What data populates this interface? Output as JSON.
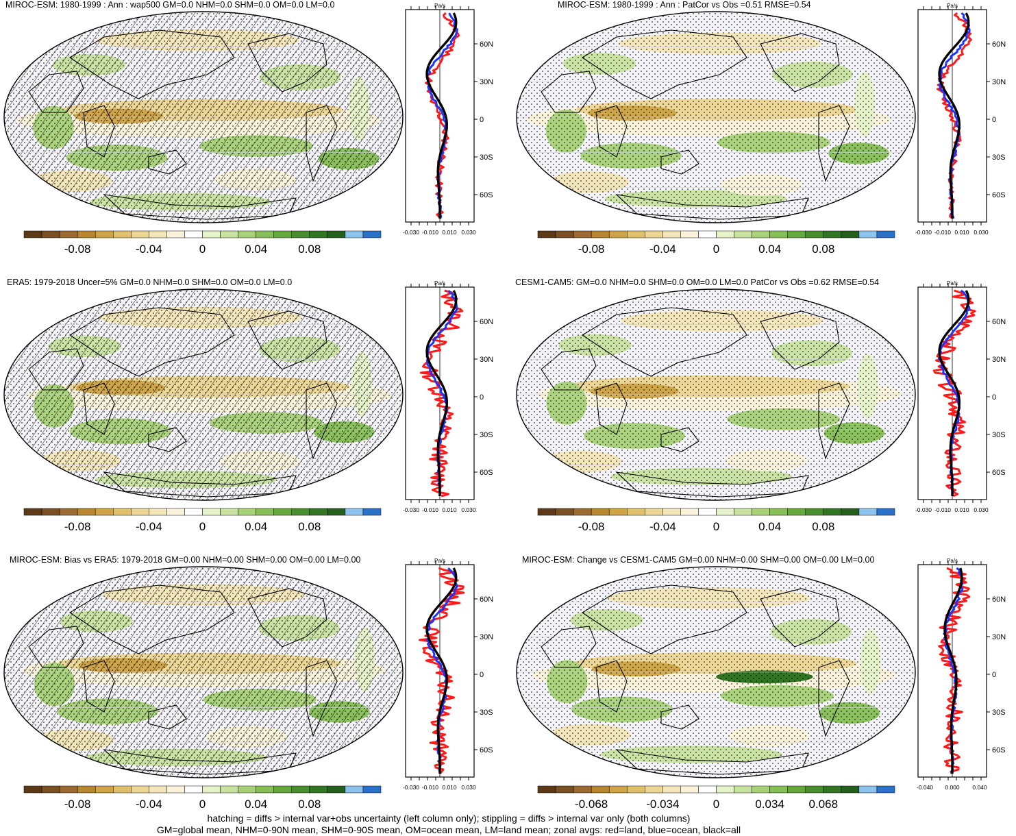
{
  "figure": {
    "colors": {
      "land_line": "#ff1a1a",
      "ocean_line": "#1a33ff",
      "all_line": "#000000",
      "map_bg": "#f4f4f8",
      "coast": "#000000"
    },
    "footer_line1": "hatching = diffs > internal var+obs uncertainty (left column only); stippling = diffs > internal var only (both columns)",
    "footer_line2": "GM=global mean, NHM=0-90N mean, SHM=0-90S mean, OM=ocean mean, LM=land mean; zonal avgs: red=land, blue=ocean, black=all"
  },
  "palette": [
    "#5c3a17",
    "#7a4f22",
    "#9c6a30",
    "#b8862e",
    "#cfa346",
    "#e0c06a",
    "#ecd694",
    "#f4e6b8",
    "#faf2da",
    "#ffffff",
    "#e6f2c8",
    "#c8e3a0",
    "#a8d277",
    "#86bf55",
    "#65a83c",
    "#4a8f2e",
    "#327523",
    "#245f1e",
    "#8cc3ef",
    "#2a72c9"
  ],
  "panels": [
    {
      "title": "MIROC-ESM: 1980-1999 : Ann : wap500 GM=0.0 NHM=0.0 SHM=0.0 OM=0.0 LM=0.0",
      "hatching": true,
      "zonal_unit": "Pa/s",
      "zonal_lat_ticks": [
        "60N",
        "30N",
        "0",
        "30S",
        "60S"
      ],
      "zonal_x_ticks": [
        "-0.030",
        "-0.010",
        "0.010",
        "0.030"
      ],
      "colorbar_ticks": [
        "-0.08",
        "-0.04",
        "0",
        "0.04",
        "0.08"
      ]
    },
    {
      "title": "MIROC-ESM: 1980-1999 : Ann : PatCor vs Obs =0.51 RMSE=0.54",
      "hatching": false,
      "zonal_unit": "Pa/s",
      "zonal_lat_ticks": [
        "60N",
        "30N",
        "0",
        "30S",
        "60S"
      ],
      "zonal_x_ticks": [
        "-0.030",
        "-0.010",
        "0.010",
        "0.030"
      ],
      "colorbar_ticks": [
        "-0.08",
        "-0.04",
        "0",
        "0.04",
        "0.08"
      ]
    },
    {
      "title": "ERA5: 1979-2018 Uncer=5% GM=0.0 NHM=0.0 SHM=0.0 OM=0.0 LM=0.0",
      "hatching": true,
      "zonal_unit": "Pa/s",
      "zonal_lat_ticks": [
        "60N",
        "30N",
        "0",
        "30S",
        "60S"
      ],
      "zonal_x_ticks": [
        "-0.030",
        "-0.010",
        "0.010",
        "0.030"
      ],
      "colorbar_ticks": [
        "-0.08",
        "-0.04",
        "0",
        "0.04",
        "0.08"
      ]
    },
    {
      "title": "CESM1-CAM5: GM=0.0 NHM=0.0 SHM=0.0 OM=0.0 LM=0.0 PatCor vs Obs =0.62 RMSE=0.54",
      "hatching": false,
      "zonal_unit": "Pa/s",
      "zonal_lat_ticks": [
        "60N",
        "30N",
        "0",
        "30S",
        "60S"
      ],
      "zonal_x_ticks": [
        "-0.030",
        "-0.010",
        "0.010",
        "0.030"
      ],
      "colorbar_ticks": [
        "-0.08",
        "-0.04",
        "0",
        "0.04",
        "0.08"
      ]
    },
    {
      "title": "MIROC-ESM: Bias vs ERA5: 1979-2018 GM=0.00 NHM=0.00 SHM=0.00 OM=0.00 LM=0.00",
      "hatching": true,
      "zonal_unit": "Pa/s",
      "zonal_lat_ticks": [
        "60N",
        "30N",
        "0",
        "30S",
        "60S"
      ],
      "zonal_x_ticks": [
        "-0.030",
        "-0.010",
        "0.010",
        "0.030"
      ],
      "colorbar_ticks": [
        "-0.08",
        "-0.04",
        "0",
        "0.04",
        "0.08"
      ]
    },
    {
      "title": "MIROC-ESM: Change vs CESM1-CAM5 GM=0.00 NHM=0.00 SHM=0.00 OM=0.00 LM=0.00",
      "hatching": false,
      "zonal_unit": "Pa/s",
      "zonal_lat_ticks": [
        "60N",
        "30N",
        "0",
        "30S",
        "60S"
      ],
      "zonal_x_ticks": [
        "-0.040",
        "0.000",
        "0.040"
      ],
      "colorbar_ticks": [
        "-0.068",
        "-0.034",
        "0",
        "0.034",
        "0.068"
      ]
    }
  ]
}
